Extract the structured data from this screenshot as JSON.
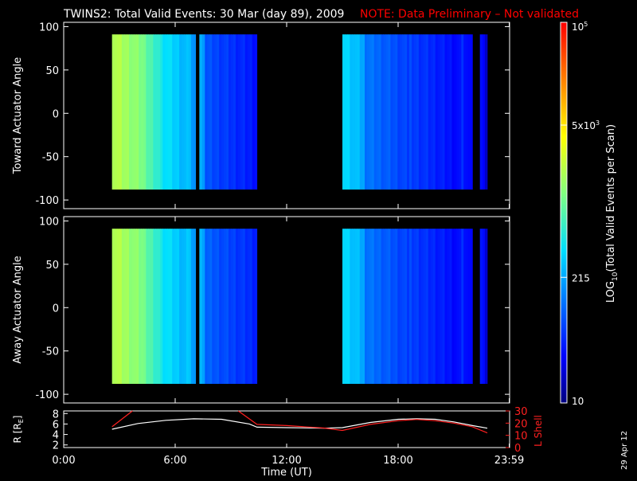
{
  "title": {
    "main": "TWINS2: Total Valid Events: 30 Mar (day  89), 2009",
    "note": "NOTE: Data Preliminary – Not validated"
  },
  "date_stamp": "29 Apr 12",
  "colors": {
    "note": "#ff0000",
    "lshell": "#ff2020",
    "r": "#ffffff"
  },
  "chart_data": [
    {
      "type": "heatmap",
      "ylabel": "Toward Actuator Angle",
      "ylim": [
        -110,
        105
      ],
      "yticks": [
        100,
        50,
        0,
        -50,
        -100
      ],
      "xlim": [
        0,
        24
      ],
      "blocks": [
        {
          "x0": 2.6,
          "x1": 4.3,
          "v": 0.62
        },
        {
          "x0": 4.3,
          "x1": 5.2,
          "v": 0.52
        },
        {
          "x0": 5.2,
          "x1": 6.6,
          "v": 0.42
        },
        {
          "x0": 6.6,
          "x1": 7.1,
          "v": 0.36
        },
        {
          "x0": 7.3,
          "x1": 7.6,
          "v": 0.34
        },
        {
          "x0": 7.6,
          "x1": 10.4,
          "v": 0.22
        },
        {
          "x0": 15.0,
          "x1": 16.2,
          "v": 0.4
        },
        {
          "x0": 16.2,
          "x1": 18.6,
          "v": 0.27
        },
        {
          "x0": 18.6,
          "x1": 21.4,
          "v": 0.2
        },
        {
          "x0": 21.4,
          "x1": 22.0,
          "v": 0.17
        },
        {
          "x0": 22.4,
          "x1": 22.8,
          "v": 0.13
        }
      ],
      "yrange": [
        -88,
        91
      ]
    },
    {
      "type": "heatmap",
      "ylabel": "Away Actuator Angle",
      "ylim": [
        -110,
        105
      ],
      "yticks": [
        100,
        50,
        0,
        -50,
        -100
      ],
      "xlim": [
        0,
        24
      ],
      "blocks": [
        {
          "x0": 2.6,
          "x1": 4.3,
          "v": 0.62
        },
        {
          "x0": 4.3,
          "x1": 5.2,
          "v": 0.52
        },
        {
          "x0": 5.2,
          "x1": 6.6,
          "v": 0.42
        },
        {
          "x0": 6.6,
          "x1": 7.1,
          "v": 0.37
        },
        {
          "x0": 7.3,
          "x1": 7.6,
          "v": 0.35
        },
        {
          "x0": 7.6,
          "x1": 10.4,
          "v": 0.24
        },
        {
          "x0": 15.0,
          "x1": 16.2,
          "v": 0.4
        },
        {
          "x0": 16.2,
          "x1": 18.6,
          "v": 0.27
        },
        {
          "x0": 18.6,
          "x1": 21.4,
          "v": 0.2
        },
        {
          "x0": 21.4,
          "x1": 22.0,
          "v": 0.17
        },
        {
          "x0": 22.4,
          "x1": 22.8,
          "v": 0.14
        }
      ],
      "yrange": [
        -88,
        91
      ]
    },
    {
      "type": "line",
      "xlabel": "Time (UT)",
      "xlim": [
        0,
        24
      ],
      "xticks": [
        "0:00",
        "6:00",
        "12:00",
        "18:00",
        "23:59"
      ],
      "xtick_values": [
        0,
        6,
        12,
        18,
        23.98
      ],
      "ylabel_left": "R [R",
      "ylabel_left_sub": "E",
      "ylabel_left_end": "]",
      "ylim_left": [
        1.5,
        8.5
      ],
      "yticks_left": [
        8,
        6,
        4,
        2
      ],
      "ylabel_right": "L Shell",
      "ylim_right": [
        0,
        30
      ],
      "yticks_right": [
        30,
        20,
        10,
        0
      ],
      "series": [
        {
          "axis": "left",
          "x": [
            2.6,
            4,
            5.5,
            7,
            8.5,
            10,
            10.4,
            12,
            14,
            15,
            16.5,
            18,
            19,
            20,
            21,
            22,
            22.8
          ],
          "y": [
            5.0,
            6.1,
            6.7,
            7.0,
            6.9,
            6.0,
            5.4,
            5.3,
            5.2,
            5.3,
            6.3,
            6.9,
            7.0,
            6.9,
            6.4,
            5.7,
            5.2
          ]
        },
        {
          "axis": "right",
          "x": [
            2.6,
            3.7,
            null,
            9.4,
            10.4,
            12,
            14,
            15,
            16.5,
            18,
            19,
            20,
            21,
            22,
            22.8
          ],
          "y": [
            17,
            30,
            null,
            30,
            19,
            18,
            16,
            14,
            19,
            22,
            23,
            22,
            20,
            17,
            12
          ]
        }
      ]
    }
  ],
  "colorbar": {
    "label": "LOG",
    "label_sub": "10",
    "label_end": "(Total Valid  Events per Scan)",
    "ticks": [
      {
        "frac": 1.0,
        "base": "10",
        "sup": "5"
      },
      {
        "frac": 0.73,
        "base": "5x10",
        "sup": "3"
      },
      {
        "frac": 0.33,
        "base": "215",
        "sup": ""
      },
      {
        "frac": 0.0,
        "base": "10",
        "sup": ""
      }
    ]
  }
}
